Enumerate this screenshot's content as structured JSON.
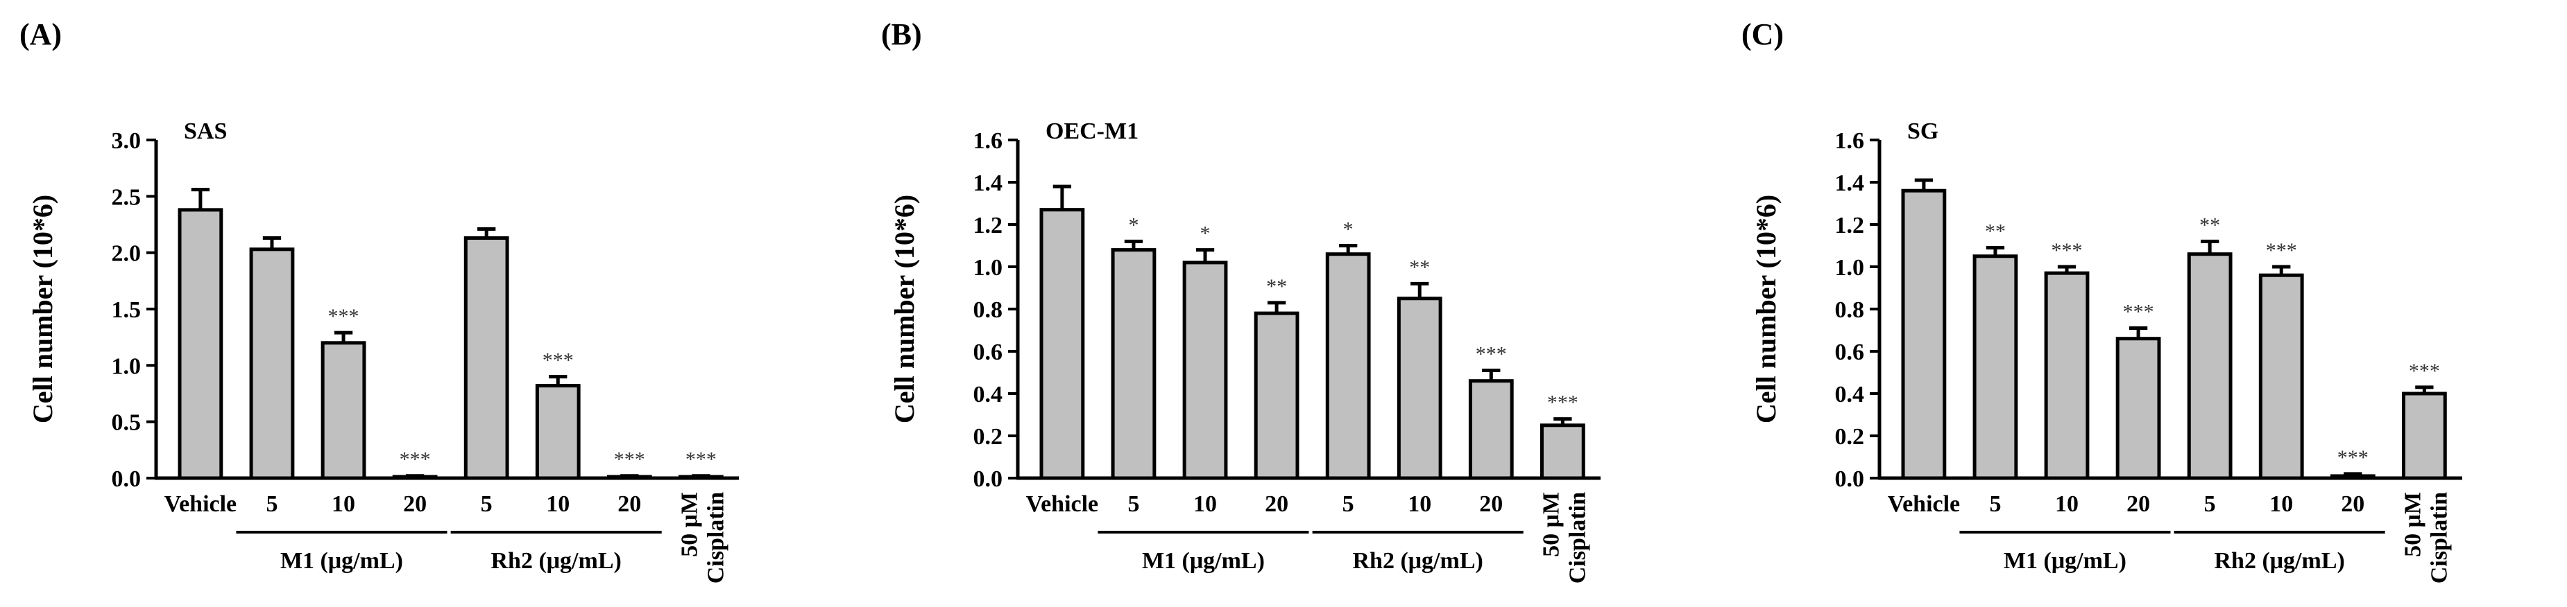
{
  "chart_data": [
    {
      "type": "bar",
      "panel": "(A)",
      "title": "SAS",
      "ylabel": "Cell number (10*6)",
      "ylim": [
        0,
        3.0
      ],
      "yticks": [
        "0.0",
        "0.5",
        "1.0",
        "1.5",
        "2.0",
        "2.5",
        "3.0"
      ],
      "yticks_values": [
        0,
        0.5,
        1.0,
        1.5,
        2.0,
        2.5,
        3.0
      ],
      "categories": [
        "Vehicle",
        "5",
        "10",
        "20",
        "5",
        "10",
        "20",
        "50 μM Cisplatin"
      ],
      "cisplatin_lines": [
        "50 μM",
        "Cisplatin"
      ],
      "values": [
        2.38,
        2.03,
        1.2,
        0.01,
        2.13,
        0.82,
        0.01,
        0.01
      ],
      "errors": [
        0.18,
        0.1,
        0.09,
        0.01,
        0.08,
        0.08,
        0.01,
        0.01
      ],
      "significance": [
        "",
        "",
        "***",
        "***",
        "",
        "***",
        "***",
        "***"
      ],
      "groups": [
        {
          "label": "M1 (μg/mL)",
          "start": 1,
          "end": 3
        },
        {
          "label": "Rh2 (μg/mL)",
          "start": 4,
          "end": 6
        }
      ],
      "bar_color": "#c0c0c0"
    },
    {
      "type": "bar",
      "panel": "(B)",
      "title": "OEC-M1",
      "ylabel": "Cell number (10*6)",
      "ylim": [
        0,
        1.6
      ],
      "yticks": [
        "0.0",
        "0.2",
        "0.4",
        "0.6",
        "0.8",
        "1.0",
        "1.2",
        "1.4",
        "1.6"
      ],
      "yticks_values": [
        0,
        0.2,
        0.4,
        0.6,
        0.8,
        1.0,
        1.2,
        1.4,
        1.6
      ],
      "categories": [
        "Vehicle",
        "5",
        "10",
        "20",
        "5",
        "10",
        "20",
        "50 μM Cisplatin"
      ],
      "cisplatin_lines": [
        "50 μM",
        "Cisplatin"
      ],
      "values": [
        1.27,
        1.08,
        1.02,
        0.78,
        1.06,
        0.85,
        0.46,
        0.25
      ],
      "errors": [
        0.11,
        0.04,
        0.06,
        0.05,
        0.04,
        0.07,
        0.05,
        0.03
      ],
      "significance": [
        "",
        "*",
        "*",
        "**",
        "*",
        "**",
        "***",
        "***"
      ],
      "groups": [
        {
          "label": "M1 (μg/mL)",
          "start": 1,
          "end": 3
        },
        {
          "label": "Rh2 (μg/mL)",
          "start": 4,
          "end": 6
        }
      ],
      "bar_color": "#c0c0c0"
    },
    {
      "type": "bar",
      "panel": "(C)",
      "title": "SG",
      "ylabel": "Cell number (10*6)",
      "ylim": [
        0,
        1.6
      ],
      "yticks": [
        "0.0",
        "0.2",
        "0.4",
        "0.6",
        "0.8",
        "1.0",
        "1.2",
        "1.4",
        "1.6"
      ],
      "yticks_values": [
        0,
        0.2,
        0.4,
        0.6,
        0.8,
        1.0,
        1.2,
        1.4,
        1.6
      ],
      "categories": [
        "Vehicle",
        "5",
        "10",
        "20",
        "5",
        "10",
        "20",
        "50 μM Cisplatin"
      ],
      "cisplatin_lines": [
        "50 μM",
        "Cisplatin"
      ],
      "values": [
        1.36,
        1.05,
        0.97,
        0.66,
        1.06,
        0.96,
        0.01,
        0.4
      ],
      "errors": [
        0.05,
        0.04,
        0.03,
        0.05,
        0.06,
        0.04,
        0.01,
        0.03
      ],
      "significance": [
        "",
        "**",
        "***",
        "***",
        "**",
        "***",
        "***",
        "***"
      ],
      "groups": [
        {
          "label": "M1 (μg/mL)",
          "start": 1,
          "end": 3
        },
        {
          "label": "Rh2 (μg/mL)",
          "start": 4,
          "end": 6
        }
      ],
      "bar_color": "#c0c0c0"
    }
  ]
}
